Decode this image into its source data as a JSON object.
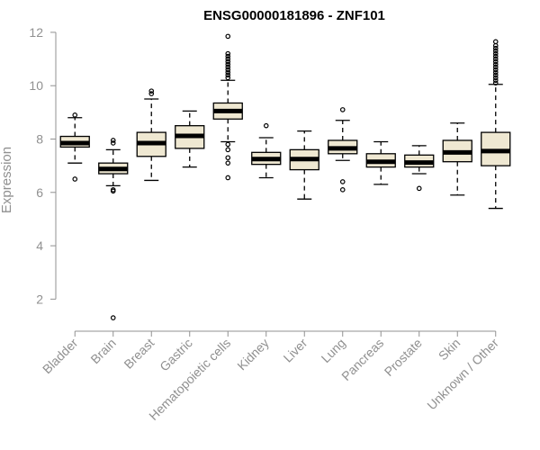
{
  "chart_data": {
    "type": "boxplot",
    "title": "ENSG00000181896 - ZNF101",
    "ylabel": "Expression",
    "xlabel": "",
    "ylim": [
      1.0,
      12.2
    ],
    "yticks": [
      2,
      4,
      6,
      8,
      10,
      12
    ],
    "box_fill": "#efe8d2",
    "grid": false,
    "categories": [
      "Bladder",
      "Brain",
      "Breast",
      "Gastric",
      "Hematopoietic cells",
      "Kidney",
      "Liver",
      "Lung",
      "Pancreas",
      "Prostate",
      "Skin",
      "Unknown / Other"
    ],
    "boxes": [
      {
        "q1": 7.7,
        "median": 7.85,
        "q3": 8.1,
        "whisker_low": 7.1,
        "whisker_high": 8.8,
        "outliers": [
          6.5,
          8.9
        ]
      },
      {
        "q1": 6.7,
        "median": 6.88,
        "q3": 7.1,
        "whisker_low": 6.25,
        "whisker_high": 7.6,
        "outliers": [
          6.05,
          6.1,
          7.85,
          7.95,
          1.3
        ]
      },
      {
        "q1": 7.35,
        "median": 7.85,
        "q3": 8.25,
        "whisker_low": 6.45,
        "whisker_high": 9.5,
        "outliers": [
          9.7,
          9.8
        ]
      },
      {
        "q1": 7.65,
        "median": 8.12,
        "q3": 8.5,
        "whisker_low": 6.95,
        "whisker_high": 9.05,
        "outliers": []
      },
      {
        "q1": 8.75,
        "median": 9.05,
        "q3": 9.35,
        "whisker_low": 7.9,
        "whisker_high": 10.2,
        "outliers": [
          6.55,
          7.1,
          7.3,
          7.6,
          7.8,
          10.3,
          10.4,
          10.5,
          10.6,
          10.7,
          10.8,
          10.9,
          11.0,
          11.1,
          11.2,
          11.85
        ]
      },
      {
        "q1": 7.05,
        "median": 7.25,
        "q3": 7.5,
        "whisker_low": 6.55,
        "whisker_high": 8.05,
        "outliers": [
          8.5
        ]
      },
      {
        "q1": 6.85,
        "median": 7.25,
        "q3": 7.6,
        "whisker_low": 5.75,
        "whisker_high": 8.3,
        "outliers": []
      },
      {
        "q1": 7.45,
        "median": 7.65,
        "q3": 7.95,
        "whisker_low": 7.2,
        "whisker_high": 8.7,
        "outliers": [
          6.1,
          6.4,
          9.1
        ]
      },
      {
        "q1": 6.95,
        "median": 7.15,
        "q3": 7.45,
        "whisker_low": 6.3,
        "whisker_high": 7.9,
        "outliers": []
      },
      {
        "q1": 6.95,
        "median": 7.12,
        "q3": 7.4,
        "whisker_low": 6.7,
        "whisker_high": 7.75,
        "outliers": [
          6.15
        ]
      },
      {
        "q1": 7.15,
        "median": 7.5,
        "q3": 7.95,
        "whisker_low": 5.9,
        "whisker_high": 8.6,
        "outliers": []
      },
      {
        "q1": 7.0,
        "median": 7.55,
        "q3": 8.25,
        "whisker_low": 5.4,
        "whisker_high": 10.05,
        "outliers": [
          10.1,
          10.2,
          10.3,
          10.4,
          10.5,
          10.6,
          10.7,
          10.8,
          10.9,
          11.0,
          11.1,
          11.2,
          11.3,
          11.4,
          11.5,
          11.65
        ]
      }
    ]
  }
}
